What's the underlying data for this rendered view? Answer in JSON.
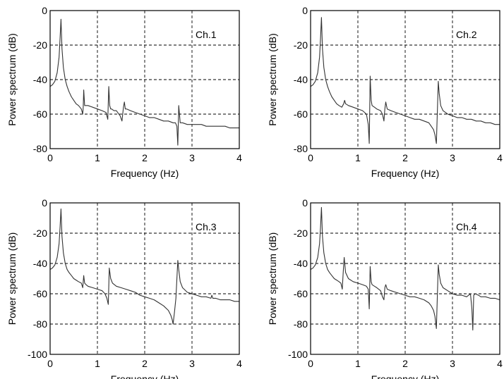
{
  "chart_data": [
    {
      "type": "line",
      "annotation": "Ch.1",
      "xlabel": "Frequency (Hz)",
      "ylabel": "Power spectrum (dB)",
      "xlim": [
        0,
        4
      ],
      "ylim": [
        -80,
        0
      ],
      "xticks": [
        "0",
        "1",
        "2",
        "3",
        "4"
      ],
      "yticks": [
        "0",
        "-20",
        "-40",
        "-60",
        "-80"
      ],
      "grid": true,
      "series": [
        {
          "color": "#333333",
          "x": [
            0,
            0.05,
            0.1,
            0.15,
            0.19,
            0.21,
            0.23,
            0.25,
            0.28,
            0.32,
            0.36,
            0.4,
            0.45,
            0.5,
            0.55,
            0.6,
            0.66,
            0.69,
            0.7,
            0.71,
            0.73,
            0.76,
            0.8,
            0.9,
            1.0,
            1.1,
            1.18,
            1.22,
            1.24,
            1.26,
            1.28,
            1.3,
            1.35,
            1.4,
            1.48,
            1.52,
            1.55,
            1.57,
            1.59,
            1.62,
            1.7,
            1.8,
            1.9,
            2.0,
            2.1,
            2.2,
            2.3,
            2.4,
            2.5,
            2.6,
            2.65,
            2.68,
            2.7,
            2.72,
            2.75,
            2.8,
            2.9,
            3.0,
            3.1,
            3.2,
            3.3,
            3.4,
            3.5,
            3.6,
            3.7,
            3.8,
            3.9,
            4.0
          ],
          "y": [
            -44,
            -43,
            -41,
            -36,
            -27,
            -16,
            -5,
            -22,
            -33,
            -40,
            -44,
            -47,
            -50,
            -52,
            -54,
            -55,
            -57,
            -60,
            -56,
            -46,
            -55,
            -55,
            -55,
            -56,
            -57,
            -58,
            -59,
            -63,
            -44,
            -55,
            -57,
            -57,
            -58,
            -58,
            -61,
            -64,
            -56,
            -53,
            -57,
            -57,
            -58,
            -59,
            -60,
            -61,
            -62,
            -62,
            -63,
            -64,
            -64,
            -65,
            -65,
            -67,
            -78,
            -55,
            -65,
            -65,
            -66,
            -66,
            -66,
            -66,
            -67,
            -67,
            -67,
            -67,
            -67,
            -68,
            -68,
            -68
          ]
        }
      ]
    },
    {
      "type": "line",
      "annotation": "Ch.2",
      "xlabel": "Frequency (Hz)",
      "ylabel": "Power spectrum (dB)",
      "xlim": [
        0,
        4
      ],
      "ylim": [
        -80,
        0
      ],
      "xticks": [
        "0",
        "1",
        "2",
        "3",
        "4"
      ],
      "yticks": [
        "0",
        "-20",
        "-40",
        "-60",
        "-80"
      ],
      "grid": true,
      "series": [
        {
          "color": "#333333",
          "x": [
            0,
            0.05,
            0.1,
            0.15,
            0.19,
            0.21,
            0.23,
            0.25,
            0.28,
            0.32,
            0.36,
            0.4,
            0.45,
            0.5,
            0.55,
            0.6,
            0.66,
            0.7,
            0.72,
            0.74,
            0.8,
            0.9,
            1.0,
            1.1,
            1.18,
            1.22,
            1.24,
            1.26,
            1.28,
            1.3,
            1.35,
            1.4,
            1.48,
            1.52,
            1.55,
            1.57,
            1.59,
            1.62,
            1.7,
            1.8,
            1.9,
            2.0,
            2.1,
            2.2,
            2.3,
            2.4,
            2.5,
            2.55,
            2.6,
            2.63,
            2.66,
            2.7,
            2.72,
            2.75,
            2.8,
            2.85,
            2.9,
            3.0,
            3.1,
            3.2,
            3.3,
            3.4,
            3.5,
            3.6,
            3.7,
            3.8,
            3.9,
            4.0
          ],
          "y": [
            -44,
            -43,
            -41,
            -36,
            -27,
            -16,
            -4,
            -22,
            -33,
            -40,
            -44,
            -47,
            -50,
            -52,
            -54,
            -55,
            -56,
            -54,
            -52,
            -54,
            -55,
            -56,
            -57,
            -58,
            -60,
            -66,
            -77,
            -38,
            -52,
            -55,
            -56,
            -57,
            -58,
            -60,
            -64,
            -57,
            -53,
            -57,
            -58,
            -59,
            -60,
            -61,
            -62,
            -63,
            -63,
            -64,
            -65,
            -67,
            -69,
            -72,
            -77,
            -41,
            -48,
            -55,
            -58,
            -59,
            -60,
            -61,
            -62,
            -62,
            -63,
            -63,
            -64,
            -64,
            -65,
            -65,
            -66,
            -66
          ]
        }
      ]
    },
    {
      "type": "line",
      "annotation": "Ch.3",
      "xlabel": "Frequency (Hz)",
      "ylabel": "Power spectrum (dB)",
      "xlim": [
        0,
        4
      ],
      "ylim": [
        -100,
        0
      ],
      "xticks": [
        "0",
        "1",
        "2",
        "3",
        "4"
      ],
      "yticks": [
        "0",
        "-20",
        "-40",
        "-60",
        "-80",
        "-100"
      ],
      "grid": true,
      "series": [
        {
          "color": "#333333",
          "x": [
            0,
            0.05,
            0.1,
            0.15,
            0.19,
            0.21,
            0.23,
            0.25,
            0.28,
            0.32,
            0.36,
            0.4,
            0.45,
            0.5,
            0.55,
            0.6,
            0.66,
            0.69,
            0.7,
            0.71,
            0.73,
            0.76,
            0.8,
            0.9,
            1.0,
            1.1,
            1.16,
            1.2,
            1.23,
            1.25,
            1.28,
            1.32,
            1.4,
            1.5,
            1.6,
            1.7,
            1.8,
            1.9,
            2.0,
            2.1,
            2.2,
            2.3,
            2.4,
            2.5,
            2.55,
            2.58,
            2.6,
            2.63,
            2.66,
            2.7,
            2.72,
            2.75,
            2.8,
            2.9,
            3.0,
            3.1,
            3.2,
            3.3,
            3.4,
            3.42,
            3.44,
            3.46,
            3.5,
            3.6,
            3.7,
            3.8,
            3.9,
            4.0
          ],
          "y": [
            -44,
            -43,
            -41,
            -36,
            -27,
            -16,
            -4,
            -22,
            -33,
            -40,
            -44,
            -46,
            -48,
            -50,
            -51,
            -52,
            -53,
            -56,
            -52,
            -48,
            -53,
            -54,
            -55,
            -56,
            -57,
            -58,
            -60,
            -63,
            -67,
            -43,
            -50,
            -53,
            -55,
            -56,
            -57,
            -58,
            -59,
            -61,
            -62,
            -63,
            -64,
            -66,
            -68,
            -71,
            -74,
            -77,
            -80,
            -72,
            -63,
            -38,
            -44,
            -52,
            -56,
            -59,
            -60,
            -61,
            -62,
            -62,
            -63,
            -61,
            -63,
            -63,
            -63,
            -64,
            -64,
            -64,
            -65,
            -65
          ]
        }
      ]
    },
    {
      "type": "line",
      "annotation": "Ch.4",
      "xlabel": "Frequency (Hz)",
      "ylabel": "Power spectrum (dB)",
      "xlim": [
        0,
        4
      ],
      "ylim": [
        -100,
        0
      ],
      "xticks": [
        "0",
        "1",
        "2",
        "3",
        "4"
      ],
      "yticks": [
        "0",
        "-20",
        "-40",
        "-60",
        "-80",
        "-100"
      ],
      "grid": true,
      "series": [
        {
          "color": "#333333",
          "x": [
            0,
            0.05,
            0.1,
            0.15,
            0.19,
            0.21,
            0.23,
            0.25,
            0.28,
            0.32,
            0.36,
            0.4,
            0.45,
            0.5,
            0.55,
            0.6,
            0.64,
            0.67,
            0.69,
            0.71,
            0.74,
            0.8,
            0.9,
            1.0,
            1.1,
            1.18,
            1.22,
            1.24,
            1.26,
            1.28,
            1.3,
            1.35,
            1.4,
            1.48,
            1.52,
            1.55,
            1.57,
            1.59,
            1.62,
            1.7,
            1.8,
            1.9,
            2.0,
            2.1,
            2.2,
            2.3,
            2.4,
            2.5,
            2.55,
            2.6,
            2.63,
            2.66,
            2.7,
            2.72,
            2.75,
            2.8,
            2.9,
            3.0,
            3.1,
            3.2,
            3.3,
            3.38,
            3.41,
            3.43,
            3.45,
            3.48,
            3.55,
            3.6,
            3.7,
            3.8,
            3.9,
            4.0
          ],
          "y": [
            -44,
            -43,
            -41,
            -36,
            -27,
            -16,
            -3,
            -22,
            -33,
            -40,
            -44,
            -46,
            -48,
            -50,
            -51,
            -52,
            -53,
            -57,
            -46,
            -36,
            -46,
            -50,
            -52,
            -53,
            -54,
            -55,
            -57,
            -70,
            -42,
            -52,
            -54,
            -55,
            -56,
            -58,
            -62,
            -64,
            -56,
            -54,
            -57,
            -58,
            -59,
            -60,
            -61,
            -62,
            -62,
            -63,
            -64,
            -66,
            -68,
            -71,
            -75,
            -83,
            -41,
            -47,
            -53,
            -56,
            -58,
            -60,
            -61,
            -61,
            -62,
            -60,
            -70,
            -84,
            -61,
            -60,
            -61,
            -62,
            -62,
            -63,
            -63,
            -64
          ]
        }
      ]
    }
  ]
}
